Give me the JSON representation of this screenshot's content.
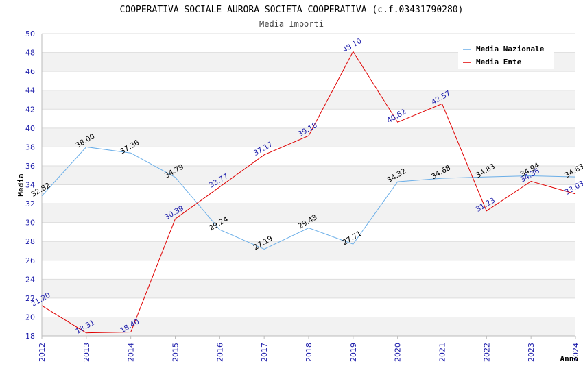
{
  "chart_data": {
    "type": "line",
    "title": "COOPERATIVA SOCIALE AURORA SOCIETA COOPERATIVA (c.f.03431790280)",
    "subtitle": "Media Importi",
    "xlabel": "Anno",
    "ylabel": "Media",
    "ylim": [
      18,
      50
    ],
    "ytick_step": 2,
    "categories": [
      "2012",
      "2013",
      "2014",
      "2015",
      "2016",
      "2017",
      "2018",
      "2019",
      "2020",
      "2021",
      "2022",
      "2023",
      "2024"
    ],
    "grid": true,
    "legend_position": "top-right",
    "series": [
      {
        "name": "Media Nazionale",
        "color": "#6aaee8",
        "label_color": "#000000",
        "values": [
          32.82,
          38.0,
          37.36,
          34.79,
          29.24,
          27.19,
          29.43,
          27.71,
          34.32,
          34.68,
          34.83,
          34.94,
          34.83
        ],
        "labels": [
          "32.82",
          "38.00",
          "37.36",
          "34.79",
          "29.24",
          "27.19",
          "29.43",
          "27.71",
          "34.32",
          "34.68",
          "34.83",
          "34.94",
          "34.83"
        ]
      },
      {
        "name": "Media Ente",
        "color": "#e00000",
        "label_color": "#1a1aaa",
        "values": [
          21.2,
          18.31,
          18.4,
          30.39,
          33.77,
          37.17,
          39.18,
          48.1,
          40.62,
          42.57,
          31.23,
          34.36,
          33.03
        ],
        "labels": [
          "21.20",
          "18.31",
          "18.40",
          "30.39",
          "33.77",
          "37.17",
          "39.18",
          "48.10",
          "40.62",
          "42.57",
          "31.23",
          "34.36",
          "33.03"
        ]
      }
    ]
  }
}
